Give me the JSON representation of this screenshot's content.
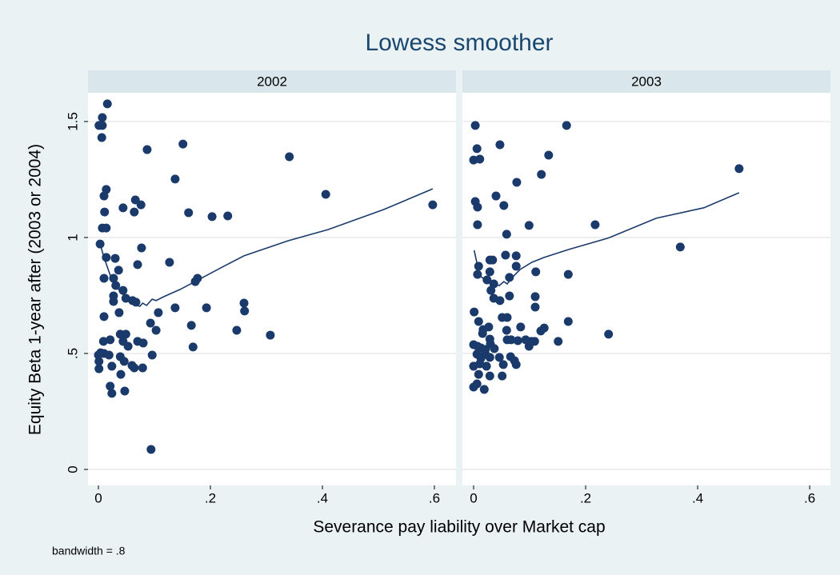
{
  "title": "Lowess smoother",
  "x_label": "Severance pay liability over Market cap",
  "y_label": "Equity Beta 1-year after (2003 or 2004)",
  "note": "bandwidth = .8",
  "chart_data": [
    {
      "type": "scatter",
      "title": "2002",
      "color": "#1a3a6b",
      "grid": true,
      "ytick_labels": true,
      "xlim": [
        -0.0186,
        0.6386
      ],
      "ylim": [
        -0.069,
        1.624
      ],
      "xticks": [
        0,
        {
          "value": 0.2,
          "label": ".2"
        },
        {
          "value": 0.4,
          "label": ".4"
        },
        {
          "value": 0.6,
          "label": ".6"
        }
      ],
      "yticks": [
        0,
        {
          "value": 0.5,
          "label": ".5"
        },
        1,
        1.5
      ],
      "x": [
        0.016,
        0.007,
        0.001,
        0.007,
        0.006,
        0.087,
        0.151,
        0.341,
        0.137,
        0.014,
        0.01,
        0.066,
        0.076,
        0.044,
        0.011,
        0.064,
        0.161,
        0.203,
        0.231,
        0.406,
        0.597,
        0.007,
        0.014,
        0.003,
        0.077,
        0.014,
        0.03,
        0.127,
        0.07,
        0.01,
        0.036,
        0.027,
        0.031,
        0.173,
        0.177,
        0.044,
        0.027,
        0.027,
        0.049,
        0.061,
        0.067,
        0.037,
        0.107,
        0.137,
        0.193,
        0.26,
        0.261,
        0.01,
        0.093,
        0.103,
        0.166,
        0.247,
        0.307,
        0.039,
        0.049,
        0.044,
        0.009,
        0.021,
        0.07,
        0.08,
        0.053,
        0.004,
        0.01,
        0,
        0.019,
        0.039,
        0.096,
        0.169,
        0.046,
        0.001,
        0.06,
        0.064,
        0.079,
        0.001,
        0.024,
        0.04,
        0.021,
        0.047,
        0.024,
        0.094
      ],
      "values": [
        1.576,
        1.517,
        1.483,
        1.483,
        1.431,
        1.379,
        1.403,
        1.348,
        1.252,
        1.207,
        1.179,
        1.162,
        1.141,
        1.128,
        1.11,
        1.11,
        1.107,
        1.09,
        1.093,
        1.186,
        1.141,
        1.041,
        1.041,
        0.972,
        0.955,
        0.914,
        0.91,
        0.893,
        0.883,
        0.824,
        0.859,
        0.824,
        0.793,
        0.81,
        0.824,
        0.772,
        0.748,
        0.724,
        0.738,
        0.728,
        0.721,
        0.676,
        0.676,
        0.697,
        0.697,
        0.717,
        0.683,
        0.659,
        0.631,
        0.6,
        0.621,
        0.6,
        0.579,
        0.583,
        0.583,
        0.552,
        0.552,
        0.559,
        0.552,
        0.545,
        0.531,
        0.503,
        0.5,
        0.493,
        0.493,
        0.486,
        0.493,
        0.528,
        0.466,
        0.466,
        0.448,
        0.438,
        0.438,
        0.434,
        0.445,
        0.41,
        0.359,
        0.338,
        0.328,
        0.086
      ],
      "lowess": {
        "x": [
          0.001,
          0.01,
          0.024,
          0.039,
          0.053,
          0.067,
          0.074,
          0.079,
          0.086,
          0.096,
          0.103,
          0.117,
          0.146,
          0.181,
          0.224,
          0.26,
          0.339,
          0.41,
          0.51,
          0.597
        ],
        "values": [
          0.99,
          0.914,
          0.817,
          0.766,
          0.731,
          0.71,
          0.703,
          0.717,
          0.707,
          0.734,
          0.728,
          0.745,
          0.776,
          0.821,
          0.876,
          0.921,
          0.986,
          1.034,
          1.121,
          1.21
        ]
      }
    },
    {
      "type": "scatter",
      "title": "2003",
      "color": "#1a3a6b",
      "grid": true,
      "ytick_labels": false,
      "xlim": [
        -0.02,
        0.637
      ],
      "ylim": [
        -0.069,
        1.624
      ],
      "xticks": [
        0,
        {
          "value": 0.2,
          "label": ".2"
        },
        {
          "value": 0.4,
          "label": ".4"
        },
        {
          "value": 0.6,
          "label": ".6"
        }
      ],
      "yticks": [
        0,
        0.5,
        1,
        1.5
      ],
      "x": [
        0.003,
        0,
        0.006,
        0.011,
        0.047,
        0.166,
        0.134,
        0.474,
        0.121,
        0.077,
        0.04,
        0.003,
        0.007,
        0.054,
        0.099,
        0.217,
        0.007,
        0.059,
        0.369,
        0.029,
        0.034,
        0.057,
        0.076,
        0.009,
        0.076,
        0.029,
        0.111,
        0.007,
        0.169,
        0.024,
        0.064,
        0.036,
        0.031,
        0.036,
        0.064,
        0.11,
        0.047,
        0.001,
        0.051,
        0.06,
        0.11,
        0.169,
        0.009,
        0.084,
        0.126,
        0.12,
        0.017,
        0.027,
        0.016,
        0.059,
        0.029,
        0.03,
        0.06,
        0.067,
        0.079,
        0.093,
        0.109,
        0.151,
        0.241,
        0,
        0.007,
        0.013,
        0.021,
        0.037,
        0.099,
        0.103,
        0.006,
        0.013,
        0.021,
        0.029,
        0.046,
        0.066,
        0.073,
        0,
        0.011,
        0.023,
        0.053,
        0.076,
        0.009,
        0.029,
        0.051,
        0.006,
        0,
        0.019
      ],
      "values": [
        1.483,
        1.334,
        1.383,
        1.338,
        1.4,
        1.483,
        1.355,
        1.297,
        1.272,
        1.238,
        1.179,
        1.155,
        1.131,
        1.138,
        1.052,
        1.055,
        1.055,
        1.014,
        0.959,
        0.903,
        0.903,
        0.924,
        0.921,
        0.876,
        0.876,
        0.852,
        0.852,
        0.841,
        0.841,
        0.817,
        0.828,
        0.8,
        0.772,
        0.738,
        0.748,
        0.745,
        0.728,
        0.679,
        0.655,
        0.655,
        0.7,
        0.638,
        0.638,
        0.614,
        0.61,
        0.597,
        0.603,
        0.614,
        0.586,
        0.6,
        0.562,
        0.541,
        0.559,
        0.559,
        0.555,
        0.559,
        0.552,
        0.552,
        0.583,
        0.538,
        0.531,
        0.524,
        0.517,
        0.521,
        0.531,
        0.552,
        0.497,
        0.479,
        0.497,
        0.483,
        0.483,
        0.486,
        0.469,
        0.445,
        0.455,
        0.445,
        0.452,
        0.452,
        0.41,
        0.403,
        0.403,
        0.369,
        0.355,
        0.345
      ],
      "lowess": {
        "x": [
          0.001,
          0.011,
          0.026,
          0.037,
          0.046,
          0.054,
          0.06,
          0.069,
          0.083,
          0.104,
          0.126,
          0.169,
          0.24,
          0.326,
          0.411,
          0.474
        ],
        "values": [
          0.945,
          0.834,
          0.81,
          0.797,
          0.793,
          0.81,
          0.8,
          0.828,
          0.862,
          0.893,
          0.914,
          0.948,
          0.997,
          1.083,
          1.128,
          1.193
        ]
      }
    }
  ]
}
